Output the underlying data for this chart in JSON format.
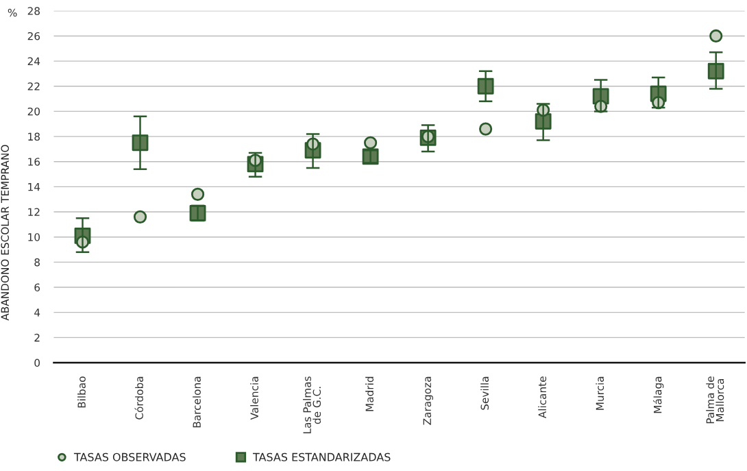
{
  "chart_data": {
    "type": "scatter",
    "ylabel": "ABANDONO ESCOLAR TEMPRANO",
    "annotations": [
      "%"
    ],
    "categories": [
      "Bilbao",
      "Córdoba",
      "Barcelona",
      "Valencia",
      "Las Palmas\nde G.C.",
      "Madrid",
      "Zaragoza",
      "Sevilla",
      "Alicante",
      "Murcia",
      "Málaga",
      "Palma de\nMallorca"
    ],
    "series": [
      {
        "name": "TASAS OBSERVADAS",
        "color": "#c8d0c0",
        "marker": "circle",
        "values": [
          9.6,
          11.6,
          13.4,
          16.1,
          17.4,
          17.5,
          18.0,
          18.6,
          20.1,
          20.4,
          20.7,
          26.0
        ]
      },
      {
        "name": "TASAS ESTANDARIZADAS",
        "color": "#5e7a52",
        "marker": "square",
        "values": [
          10.1,
          17.5,
          11.9,
          15.8,
          16.9,
          16.4,
          17.9,
          22.0,
          19.2,
          21.2,
          21.4,
          23.2
        ],
        "errors": [
          [
            8.8,
            11.5
          ],
          [
            15.4,
            19.6
          ],
          [
            11.3,
            12.5
          ],
          [
            14.8,
            16.7
          ],
          [
            15.5,
            18.2
          ],
          [
            15.9,
            16.9
          ],
          [
            16.8,
            18.9
          ],
          [
            20.8,
            23.2
          ],
          [
            17.7,
            20.6
          ],
          [
            20.0,
            22.5
          ],
          [
            20.3,
            22.7
          ],
          [
            21.8,
            24.7
          ]
        ]
      }
    ],
    "ylim": [
      0,
      28
    ],
    "yticks": [
      0,
      2,
      4,
      6,
      8,
      10,
      12,
      14,
      16,
      18,
      20,
      22,
      24,
      26,
      28
    ],
    "grid": "y",
    "legend": "bottom left"
  }
}
